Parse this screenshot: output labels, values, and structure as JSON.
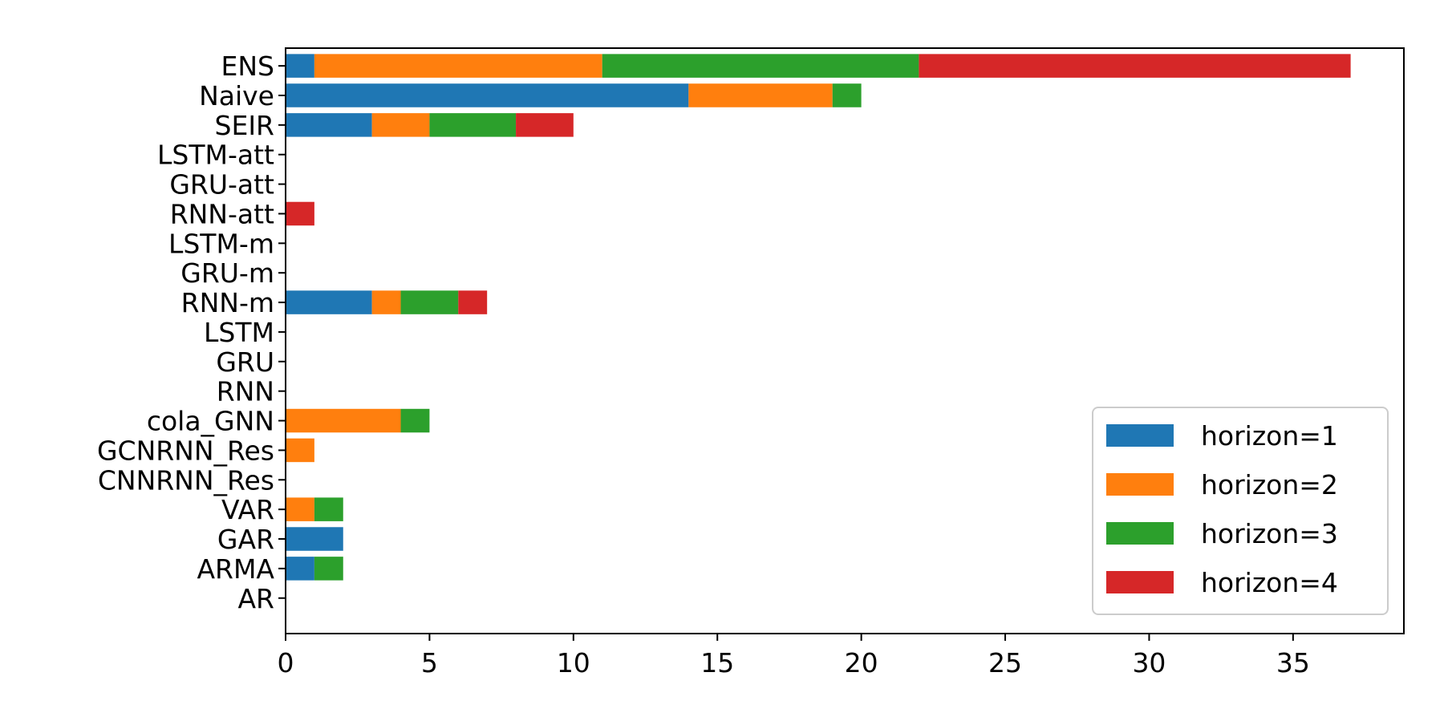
{
  "chart_data": {
    "type": "bar",
    "orientation": "horizontal",
    "stacked": true,
    "title": "",
    "xlabel": "",
    "ylabel": "",
    "xlim": [
      0,
      38.85
    ],
    "xticks": [
      0,
      5,
      10,
      15,
      20,
      25,
      30,
      35
    ],
    "grid": false,
    "legend_position": "lower-right",
    "categories": [
      "AR",
      "ARMA",
      "GAR",
      "VAR",
      "CNNRNN_Res",
      "GCNRNN_Res",
      "cola_GNN",
      "RNN",
      "GRU",
      "LSTM",
      "RNN-m",
      "GRU-m",
      "LSTM-m",
      "RNN-att",
      "GRU-att",
      "LSTM-att",
      "SEIR",
      "Naive",
      "ENS"
    ],
    "series": [
      {
        "name": "horizon=1",
        "color": "#1f77b4",
        "values": [
          0,
          1,
          2,
          0,
          0,
          0,
          0,
          0,
          0,
          0,
          3,
          0,
          0,
          0,
          0,
          0,
          3,
          14,
          1
        ]
      },
      {
        "name": "horizon=2",
        "color": "#ff7f0e",
        "values": [
          0,
          0,
          0,
          1,
          0,
          1,
          4,
          0,
          0,
          0,
          1,
          0,
          0,
          0,
          0,
          0,
          2,
          5,
          10
        ]
      },
      {
        "name": "horizon=3",
        "color": "#2ca02c",
        "values": [
          0,
          1,
          0,
          1,
          0,
          0,
          1,
          0,
          0,
          0,
          2,
          0,
          0,
          0,
          0,
          0,
          3,
          1,
          11
        ]
      },
      {
        "name": "horizon=4",
        "color": "#d62728",
        "values": [
          0,
          0,
          0,
          0,
          0,
          0,
          0,
          0,
          0,
          0,
          1,
          0,
          0,
          1,
          0,
          0,
          2,
          0,
          15
        ]
      }
    ]
  }
}
